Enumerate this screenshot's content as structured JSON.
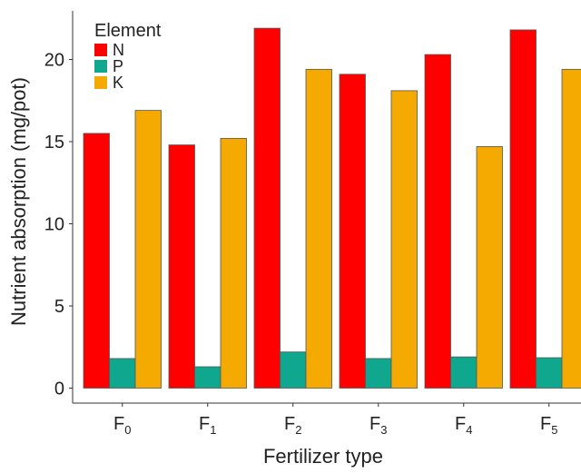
{
  "chart_data": {
    "type": "bar",
    "xlabel": "Fertilizer type",
    "ylabel": "Nutrient absorption (mg/pot)",
    "categories": [
      {
        "base": "F",
        "sub": "0"
      },
      {
        "base": "F",
        "sub": "1"
      },
      {
        "base": "F",
        "sub": "2"
      },
      {
        "base": "F",
        "sub": "3"
      },
      {
        "base": "F",
        "sub": "4"
      },
      {
        "base": "F",
        "sub": "5"
      }
    ],
    "ylim": [
      0,
      22.5
    ],
    "yticks": [
      0,
      5,
      10,
      15,
      20
    ],
    "legend": {
      "title": "Element",
      "placement": "top-left"
    },
    "series": [
      {
        "name": "N",
        "color": "#ff0000",
        "values": [
          15.5,
          14.8,
          21.9,
          19.1,
          20.3,
          21.8
        ]
      },
      {
        "name": "P",
        "color": "#0fa88f",
        "values": [
          1.8,
          1.3,
          2.2,
          1.8,
          1.9,
          1.85
        ]
      },
      {
        "name": "K",
        "color": "#f4aa00",
        "values": [
          16.9,
          15.2,
          19.4,
          18.1,
          14.7,
          19.4
        ]
      }
    ],
    "grid": false
  }
}
